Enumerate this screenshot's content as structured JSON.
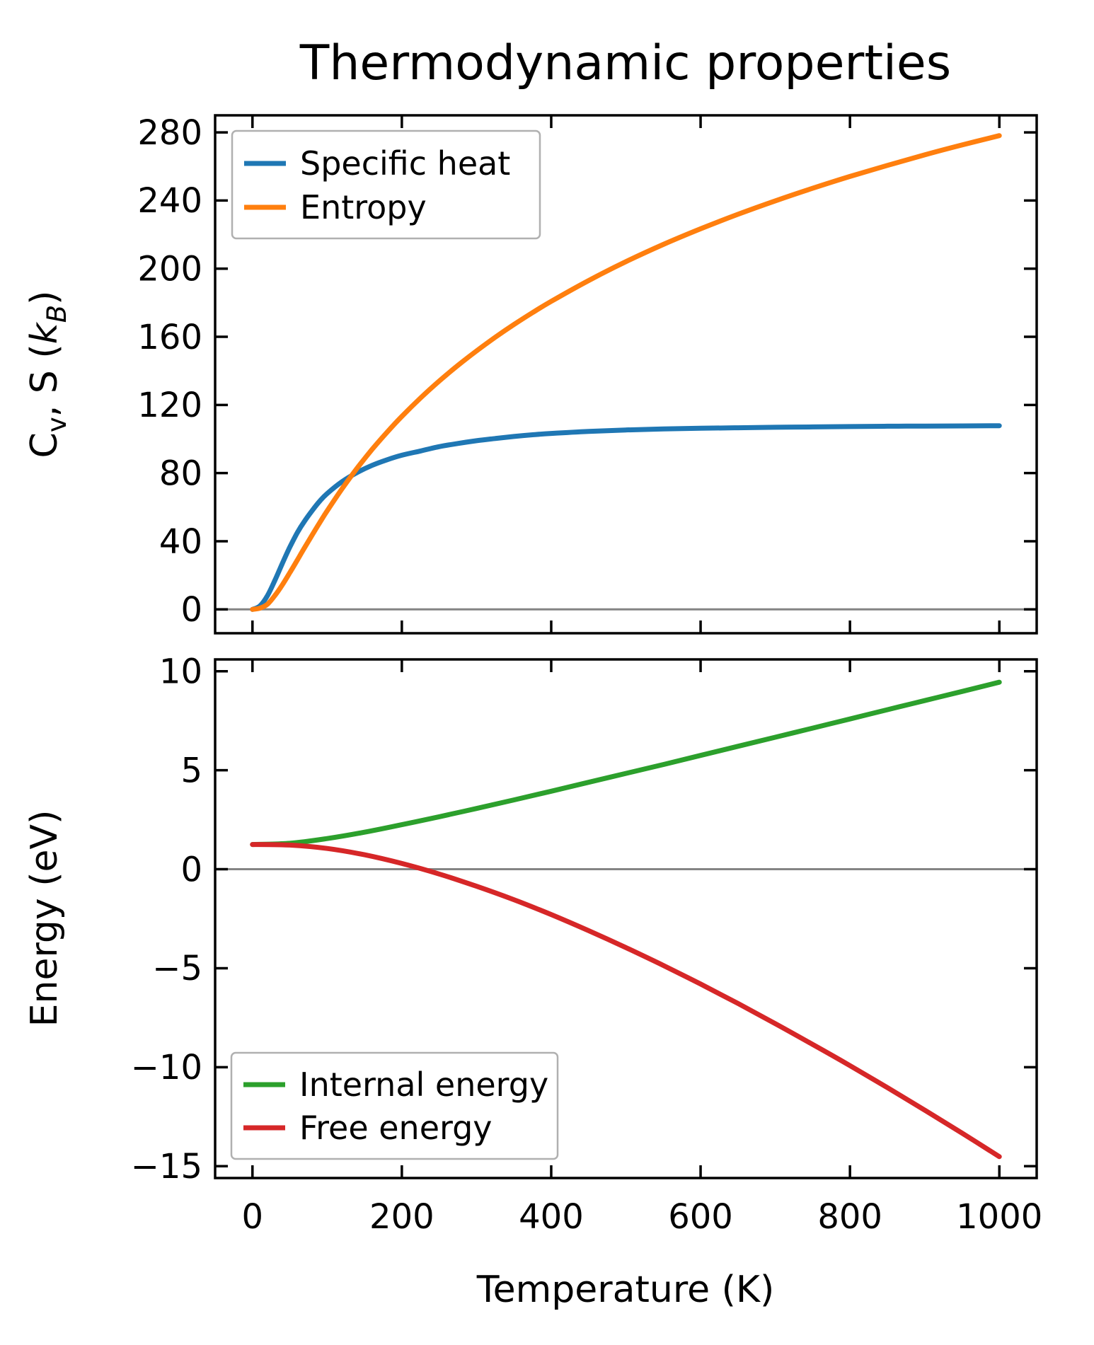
{
  "figure": {
    "title": "Thermodynamic properties",
    "xlabel": "Temperature (K)",
    "background": "#ffffff",
    "axis_color": "#000000",
    "zero_line_color": "#848484",
    "legend_border_color": "#b0b0b0",
    "tick_direction": "in",
    "grid": false
  },
  "chart_data": [
    {
      "type": "line",
      "title": "Thermodynamic properties",
      "xlabel": "Temperature (K)",
      "ylabel": "Cv, S (kB)",
      "ylabel_parts": [
        {
          "t": "C"
        },
        {
          "t": "v",
          "sub": true
        },
        {
          "t": ", S ("
        },
        {
          "t": "k",
          "italic": true
        },
        {
          "t": "B",
          "sub": true,
          "italic": true
        },
        {
          "t": ")"
        }
      ],
      "xlim": [
        -50,
        1050
      ],
      "ylim": [
        -14,
        290
      ],
      "x_ticks": [
        0,
        200,
        400,
        600,
        800,
        1000
      ],
      "x_tick_labels": [
        "0",
        "200",
        "400",
        "600",
        "800",
        "1000"
      ],
      "show_x_tick_labels": false,
      "y_ticks": [
        0,
        40,
        80,
        120,
        160,
        200,
        240,
        280
      ],
      "y_tick_labels": [
        "0",
        "40",
        "80",
        "120",
        "160",
        "200",
        "240",
        "280"
      ],
      "zero_line": 0,
      "legend_position": "upper-left",
      "legend": [
        {
          "label": "Specific heat",
          "color": "#1f77b4"
        },
        {
          "label": "Entropy",
          "color": "#ff7f0e"
        }
      ],
      "series": [
        {
          "name": "Specific heat",
          "color": "#1f77b4",
          "x": [
            0,
            10,
            20,
            30,
            40,
            50,
            60,
            70,
            80,
            90,
            100,
            120,
            140,
            160,
            180,
            200,
            225,
            250,
            275,
            300,
            325,
            350,
            375,
            400,
            450,
            500,
            550,
            600,
            650,
            700,
            750,
            800,
            850,
            900,
            950,
            1000
          ],
          "y": [
            0,
            2,
            8,
            17,
            27,
            36.5,
            45,
            52,
            58,
            63.5,
            68,
            75,
            80.3,
            84.5,
            87.8,
            90.5,
            93,
            95.5,
            97.4,
            99,
            100.3,
            101.5,
            102.5,
            103.3,
            104.5,
            105.3,
            105.9,
            106.3,
            106.6,
            106.9,
            107.1,
            107.3,
            107.5,
            107.6,
            107.7,
            107.8
          ]
        },
        {
          "name": "Entropy",
          "color": "#ff7f0e",
          "x": [
            0,
            10,
            20,
            30,
            40,
            50,
            60,
            70,
            80,
            90,
            100,
            120,
            140,
            160,
            180,
            200,
            225,
            250,
            275,
            300,
            325,
            350,
            375,
            400,
            450,
            500,
            550,
            600,
            650,
            700,
            750,
            800,
            850,
            900,
            950,
            1000
          ],
          "y": [
            0,
            0.7,
            3,
            8.1,
            14.4,
            21.5,
            28.9,
            36.4,
            43.7,
            50.9,
            57.8,
            70.8,
            82.8,
            93.8,
            103.9,
            113.3,
            124.1,
            134,
            143.2,
            151.7,
            159.7,
            167.2,
            174.2,
            180.8,
            193,
            204.1,
            214.2,
            223.4,
            231.9,
            239.8,
            247.2,
            254.1,
            260.6,
            266.8,
            272.6,
            278.1
          ]
        }
      ]
    },
    {
      "type": "line",
      "title": "",
      "xlabel": "Temperature (K)",
      "ylabel": "Energy (eV)",
      "ylabel_parts": [
        {
          "t": "Energy (eV)"
        }
      ],
      "xlim": [
        -50,
        1050
      ],
      "ylim": [
        -15.6,
        10.6
      ],
      "x_ticks": [
        0,
        200,
        400,
        600,
        800,
        1000
      ],
      "x_tick_labels": [
        "0",
        "200",
        "400",
        "600",
        "800",
        "1000"
      ],
      "show_x_tick_labels": true,
      "y_ticks": [
        -15,
        -10,
        -5,
        0,
        5,
        10
      ],
      "y_tick_labels": [
        "−15",
        "−10",
        "−5",
        "0",
        "5",
        "10"
      ],
      "zero_line": 0,
      "legend_position": "lower-left",
      "legend": [
        {
          "label": "Internal energy",
          "color": "#2ca02c"
        },
        {
          "label": "Free energy",
          "color": "#d62728"
        }
      ],
      "series": [
        {
          "name": "Internal energy",
          "color": "#2ca02c",
          "x": [
            0,
            50,
            100,
            150,
            200,
            250,
            300,
            350,
            400,
            450,
            500,
            550,
            600,
            650,
            700,
            750,
            800,
            850,
            900,
            950,
            1000
          ],
          "y": [
            1.25,
            1.31,
            1.55,
            1.87,
            2.25,
            2.65,
            3.07,
            3.5,
            3.94,
            4.39,
            4.84,
            5.29,
            5.75,
            6.21,
            6.67,
            7.13,
            7.59,
            8.06,
            8.52,
            8.98,
            9.45
          ]
        },
        {
          "name": "Free energy",
          "color": "#d62728",
          "x": [
            0,
            50,
            100,
            150,
            200,
            250,
            300,
            350,
            400,
            450,
            500,
            550,
            600,
            650,
            700,
            750,
            800,
            850,
            900,
            950,
            1000
          ],
          "y": [
            1.25,
            1.22,
            1.05,
            0.73,
            0.29,
            -0.24,
            -0.86,
            -1.54,
            -2.29,
            -3.1,
            -3.96,
            -4.86,
            -5.8,
            -6.78,
            -7.8,
            -8.85,
            -9.92,
            -11.03,
            -12.17,
            -13.33,
            -14.52
          ]
        }
      ]
    }
  ]
}
